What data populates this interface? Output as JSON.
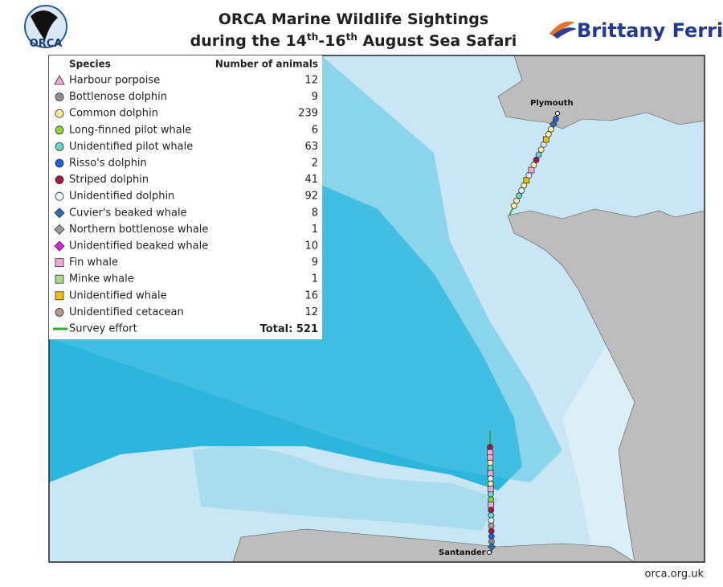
{
  "header": {
    "logo_left": "ORCA",
    "title_line1": "ORCA Marine Wildlife Sightings",
    "title_line2": [
      "during the 14",
      "th",
      "-16",
      "th",
      " August Sea Safari"
    ],
    "logo_right": "Brittany Ferries"
  },
  "legend": {
    "species_header": "Species",
    "count_header": "Number of animals",
    "rows": [
      {
        "species": "Harbour porpoise",
        "count": 12,
        "marker": "triangle",
        "color": "#f4a6d7"
      },
      {
        "species": "Bottlenose dolphin",
        "count": 9,
        "marker": "circle",
        "color": "#8c8c8c"
      },
      {
        "species": "Common dolphin",
        "count": 239,
        "marker": "circle",
        "color": "#fff2a0"
      },
      {
        "species": "Long-finned pilot whale",
        "count": 6,
        "marker": "circle",
        "color": "#8fd43a"
      },
      {
        "species": "Unidentified pilot whale",
        "count": 63,
        "marker": "circle",
        "color": "#66d9cc"
      },
      {
        "species": "Risso's dolphin",
        "count": 2,
        "marker": "circle",
        "color": "#1f5fe0"
      },
      {
        "species": "Striped dolphin",
        "count": 41,
        "marker": "circle",
        "color": "#a3154a"
      },
      {
        "species": "Unidentified dolphin",
        "count": 92,
        "marker": "circle",
        "color": "#e6f7fa"
      },
      {
        "species": "Cuvier's beaked whale",
        "count": 8,
        "marker": "diamond",
        "color": "#2a6fa8"
      },
      {
        "species": "Northern bottlenose whale",
        "count": 1,
        "marker": "diamond",
        "color": "#999999"
      },
      {
        "species": "Unidentified beaked whale",
        "count": 10,
        "marker": "diamond",
        "color": "#e020e0"
      },
      {
        "species": "Fin whale",
        "count": 9,
        "marker": "square",
        "color": "#f7a8d8"
      },
      {
        "species": "Minke whale",
        "count": 1,
        "marker": "square",
        "color": "#a8dc8c"
      },
      {
        "species": "Unidentified whale",
        "count": 16,
        "marker": "square",
        "color": "#f2c200"
      },
      {
        "species": "Unidentified cetacean",
        "count": 12,
        "marker": "circle",
        "color": "#b89a8e"
      }
    ],
    "effort_label": "Survey effort",
    "effort_color": "#3aa83a",
    "total_label": "Total:",
    "total": 521
  },
  "map": {
    "places": [
      "Plymouth",
      "Santander"
    ]
  },
  "footer": {
    "url": "orca.org.uk"
  }
}
